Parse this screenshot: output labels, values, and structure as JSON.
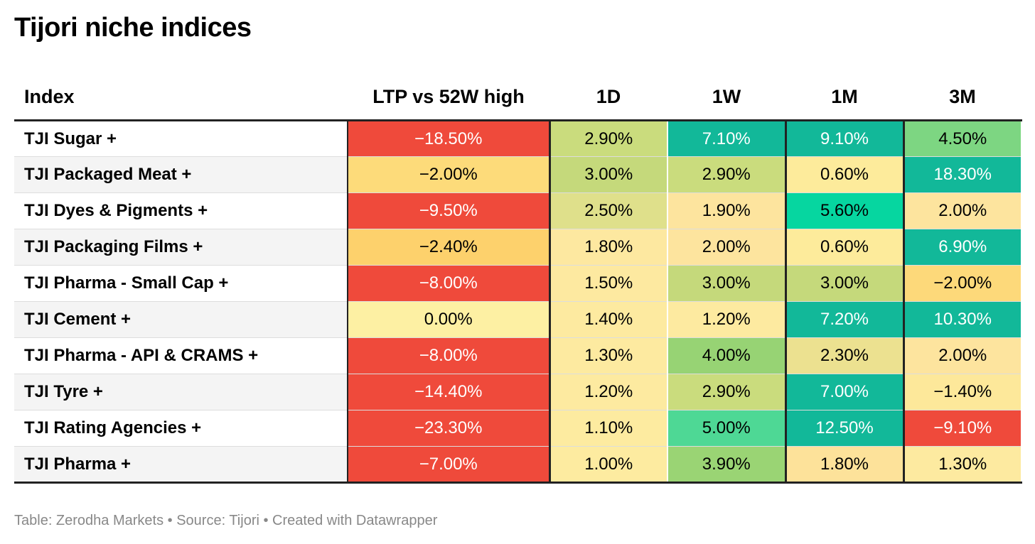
{
  "title": "Tijori niche indices",
  "footer": "Table: Zerodha Markets • Source: Tijori • Created with Datawrapper",
  "chart_data": {
    "type": "table",
    "title": "Tijori niche indices",
    "columns": [
      "Index",
      "LTP vs 52W high",
      "1D",
      "1W",
      "1M",
      "3M"
    ],
    "rows": [
      {
        "index": "TJI Sugar +",
        "values": [
          "−18.50%",
          "2.90%",
          "7.10%",
          "9.10%",
          "4.50%"
        ],
        "numbers": [
          -18.5,
          2.9,
          7.1,
          9.1,
          4.5
        ],
        "colors": [
          "#ef4a3b",
          "#cadc7d",
          "#12b899",
          "#12b899",
          "#7dd682"
        ],
        "text_colors": [
          "#ffffff",
          "#000000",
          "#ffffff",
          "#ffffff",
          "#000000"
        ]
      },
      {
        "index": "TJI Packaged Meat +",
        "values": [
          "−2.00%",
          "3.00%",
          "2.90%",
          "0.60%",
          "18.30%"
        ],
        "numbers": [
          -2.0,
          3.0,
          2.9,
          0.6,
          18.3
        ],
        "colors": [
          "#fddb7a",
          "#c5d97b",
          "#cadc7d",
          "#fdeb9b",
          "#12b899"
        ],
        "text_colors": [
          "#000000",
          "#000000",
          "#000000",
          "#000000",
          "#ffffff"
        ]
      },
      {
        "index": "TJI Dyes & Pigments +",
        "values": [
          "−9.50%",
          "2.50%",
          "1.90%",
          "5.60%",
          "2.00%"
        ],
        "numbers": [
          -9.5,
          2.5,
          1.9,
          5.6,
          2.0
        ],
        "colors": [
          "#ef4a3b",
          "#dfe08b",
          "#fde49e",
          "#06d6a0",
          "#fde49e"
        ],
        "text_colors": [
          "#ffffff",
          "#000000",
          "#000000",
          "#000000",
          "#000000"
        ]
      },
      {
        "index": "TJI Packaging Films +",
        "values": [
          "−2.40%",
          "1.80%",
          "2.00%",
          "0.60%",
          "6.90%"
        ],
        "numbers": [
          -2.4,
          1.8,
          2.0,
          0.6,
          6.9
        ],
        "colors": [
          "#fdd16c",
          "#fde8a0",
          "#fde49e",
          "#fdeb9b",
          "#12b899"
        ],
        "text_colors": [
          "#000000",
          "#000000",
          "#000000",
          "#000000",
          "#ffffff"
        ]
      },
      {
        "index": "TJI Pharma - Small Cap +",
        "values": [
          "−8.00%",
          "1.50%",
          "3.00%",
          "3.00%",
          "−2.00%"
        ],
        "numbers": [
          -8.0,
          1.5,
          3.0,
          3.0,
          -2.0
        ],
        "colors": [
          "#ef4a3b",
          "#fde9a0",
          "#c5d97b",
          "#c5d97b",
          "#fdd97a"
        ],
        "text_colors": [
          "#ffffff",
          "#000000",
          "#000000",
          "#000000",
          "#000000"
        ]
      },
      {
        "index": "TJI Cement +",
        "values": [
          "0.00%",
          "1.40%",
          "1.20%",
          "7.20%",
          "10.30%"
        ],
        "numbers": [
          0.0,
          1.4,
          1.2,
          7.2,
          10.3
        ],
        "colors": [
          "#fdf0a3",
          "#fdeaa0",
          "#fdeaa0",
          "#12b899",
          "#12b899"
        ],
        "text_colors": [
          "#000000",
          "#000000",
          "#000000",
          "#ffffff",
          "#ffffff"
        ]
      },
      {
        "index": "TJI Pharma - API & CRAMS +",
        "values": [
          "−8.00%",
          "1.30%",
          "4.00%",
          "2.30%",
          "2.00%"
        ],
        "numbers": [
          -8.0,
          1.3,
          4.0,
          2.3,
          2.0
        ],
        "colors": [
          "#ef4a3b",
          "#fdeaa0",
          "#97d374",
          "#ece190",
          "#fde49e"
        ],
        "text_colors": [
          "#ffffff",
          "#000000",
          "#000000",
          "#000000",
          "#000000"
        ]
      },
      {
        "index": "TJI Tyre +",
        "values": [
          "−14.40%",
          "1.20%",
          "2.90%",
          "7.00%",
          "−1.40%"
        ],
        "numbers": [
          -14.4,
          1.2,
          2.9,
          7.0,
          -1.4
        ],
        "colors": [
          "#ef4a3b",
          "#fdeaa0",
          "#cadc7d",
          "#12b899",
          "#fde89a"
        ],
        "text_colors": [
          "#ffffff",
          "#000000",
          "#000000",
          "#ffffff",
          "#000000"
        ]
      },
      {
        "index": "TJI Rating Agencies +",
        "values": [
          "−23.30%",
          "1.10%",
          "5.00%",
          "12.50%",
          "−9.10%"
        ],
        "numbers": [
          -23.3,
          1.1,
          5.0,
          12.5,
          -9.1
        ],
        "colors": [
          "#ef4a3b",
          "#fdeba0",
          "#4ed895",
          "#12b899",
          "#ef4a3b"
        ],
        "text_colors": [
          "#ffffff",
          "#000000",
          "#000000",
          "#ffffff",
          "#ffffff"
        ]
      },
      {
        "index": "TJI Pharma +",
        "values": [
          "−7.00%",
          "1.00%",
          "3.90%",
          "1.80%",
          "1.30%"
        ],
        "numbers": [
          -7.0,
          1.0,
          3.9,
          1.8,
          1.3
        ],
        "colors": [
          "#ef4a3b",
          "#fdeba0",
          "#9ad474",
          "#fde29a",
          "#fdeaa0"
        ],
        "text_colors": [
          "#ffffff",
          "#000000",
          "#000000",
          "#000000",
          "#000000"
        ]
      }
    ]
  }
}
